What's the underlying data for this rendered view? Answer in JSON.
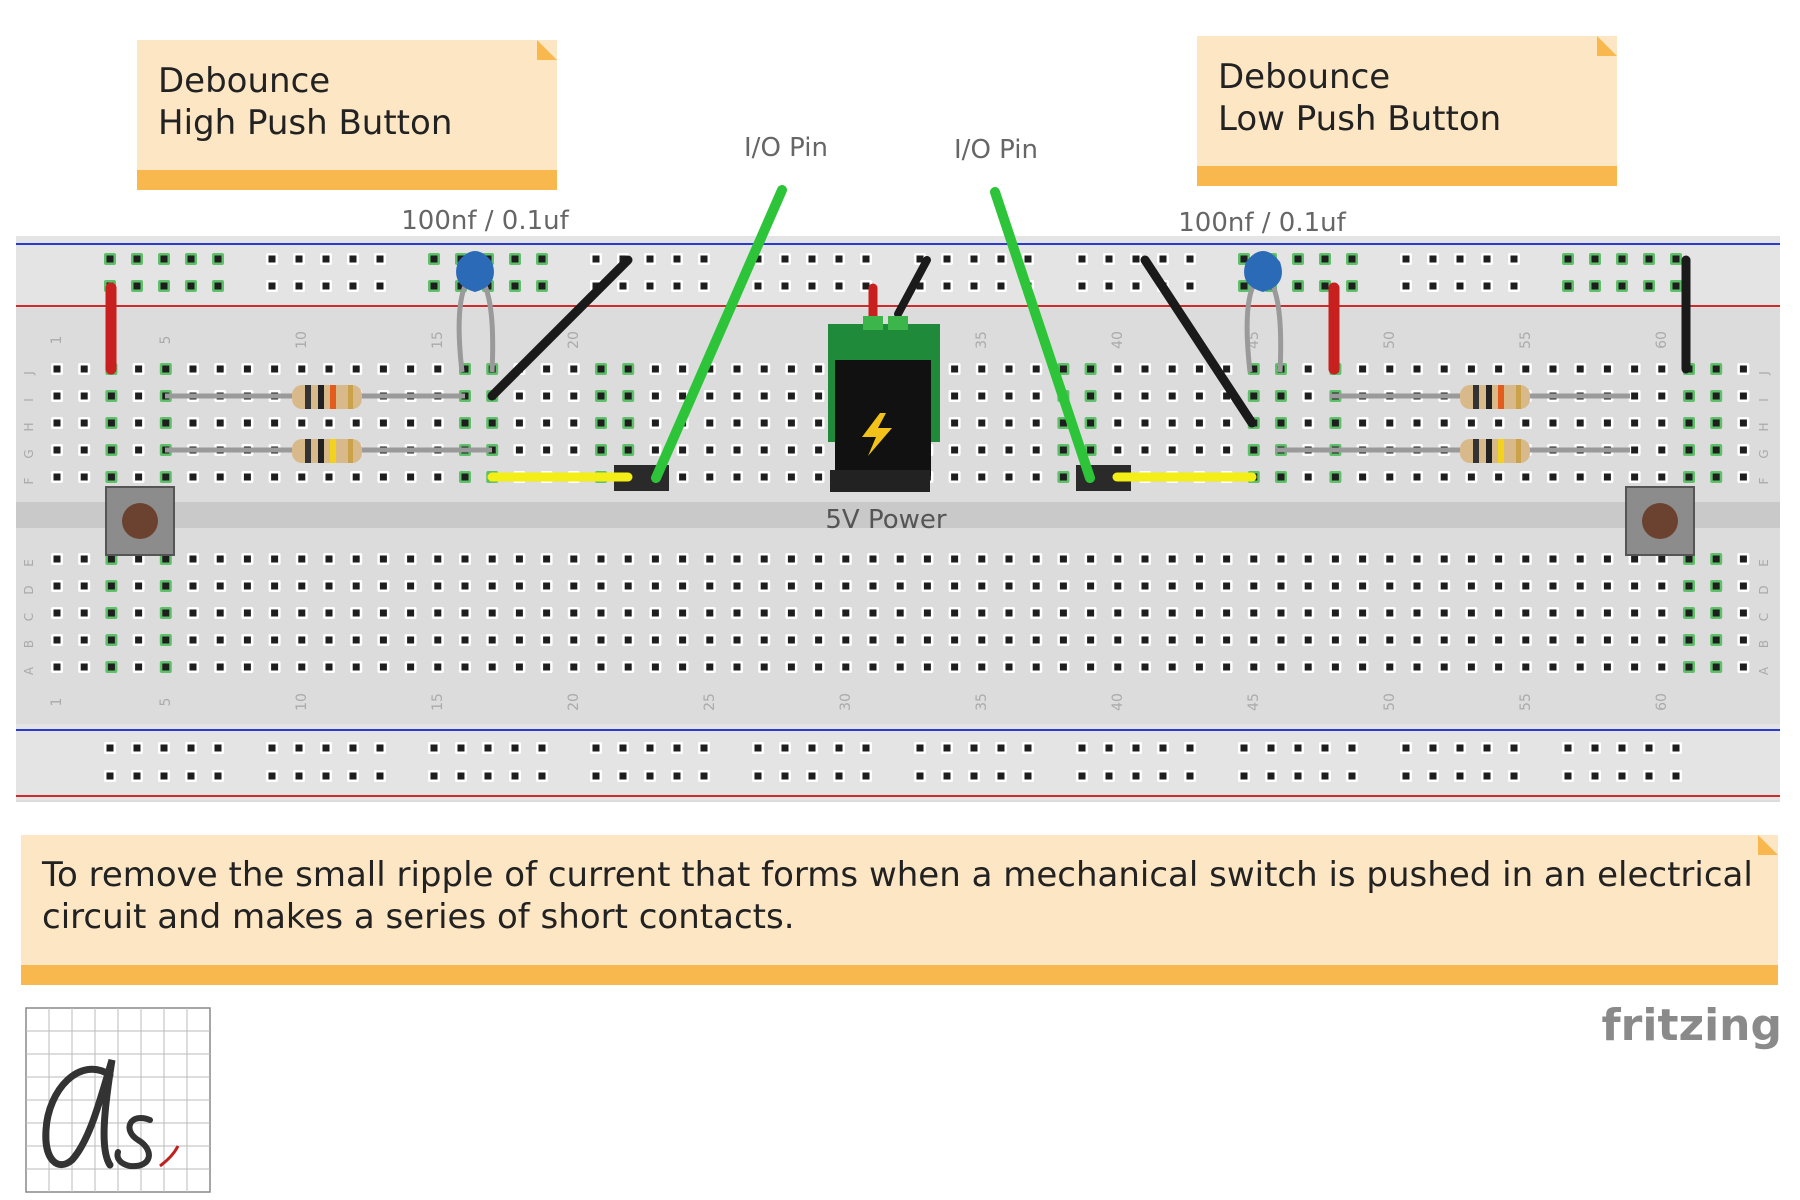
{
  "notes": {
    "high": {
      "line1": "Debounce",
      "line2": "High Push Button"
    },
    "low": {
      "line1": "Debounce",
      "line2": "Low Push Button"
    },
    "description": {
      "line1": "To remove the small ripple of current that forms when a mechanical switch is pushed in an electrical",
      "line2": "circuit and makes a series of short contacts."
    }
  },
  "labels": {
    "io_pin_left": "I/O Pin",
    "io_pin_right": "I/O Pin",
    "cap_left": "100nf / 0.1uf",
    "cap_right": "100nf / 0.1uf",
    "power": "5V Power"
  },
  "breadboard": {
    "columns": 63,
    "upper_row_letters": [
      "J",
      "I",
      "H",
      "G",
      "F"
    ],
    "lower_row_letters": [
      "E",
      "D",
      "C",
      "B",
      "A"
    ],
    "column_numbers": [
      "1",
      "5",
      "10",
      "15",
      "20",
      "25",
      "30",
      "35",
      "40",
      "45",
      "50",
      "55",
      "60"
    ],
    "top_number_labels": [
      "1",
      "5",
      "10",
      "15",
      "20",
      "35",
      "40",
      "45",
      "50",
      "55",
      "60"
    ]
  },
  "colors": {
    "note_fill": "#fde6c4",
    "note_bar": "#f8b84e",
    "board": "#dcdcdc",
    "rail_red": "#d22a2a",
    "rail_blue": "#2a3ad2",
    "wire_red": "#c8201e",
    "wire_black": "#1a1a1a",
    "wire_green": "#2ec43a",
    "wire_yellow": "#f2ee16",
    "capacitor": "#2b6ab6",
    "pcb": "#1f8a3a"
  },
  "brand": {
    "name": "fritzing"
  }
}
